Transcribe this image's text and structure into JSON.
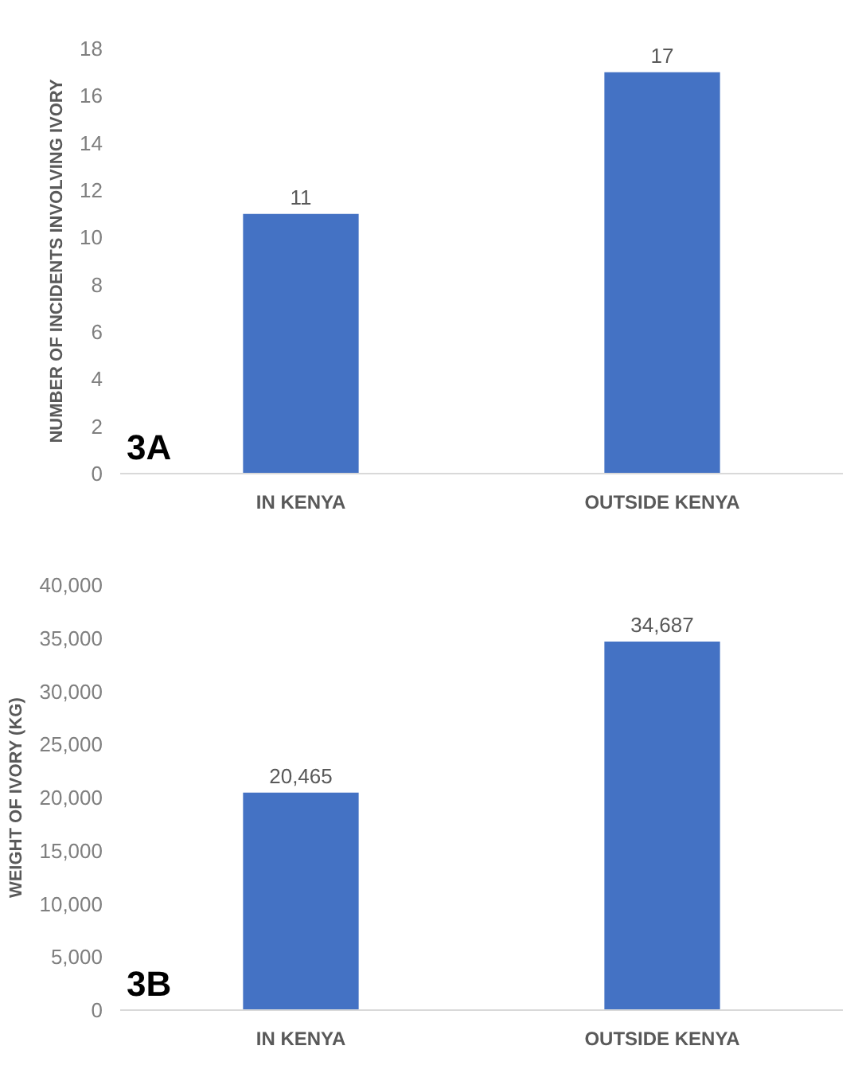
{
  "chart_data": [
    {
      "type": "bar",
      "ylabel": "NUMBER OF INCIDENTS INVOLVING IVORY",
      "categories": [
        "IN KENYA",
        "OUTSIDE KENYA"
      ],
      "values": [
        11,
        17
      ],
      "color": "#4472c4",
      "ylim": [
        0,
        18
      ],
      "yticks": [
        0,
        2,
        4,
        6,
        8,
        10,
        12,
        14,
        16,
        18
      ],
      "data_labels": true,
      "annotations": [
        "3A"
      ]
    },
    {
      "type": "bar",
      "ylabel": "WEIGHT OF IVORY (KG)",
      "categories": [
        "IN KENYA",
        "OUTSIDE KENYA"
      ],
      "values": [
        20465,
        34687
      ],
      "color": "#4472c4",
      "ylim": [
        0,
        40000
      ],
      "yticks": [
        0,
        {
          "value": 5000,
          "label": "5,000"
        },
        {
          "value": 10000,
          "label": "10,000"
        },
        {
          "value": 15000,
          "label": "15,000"
        },
        {
          "value": 20000,
          "label": "20,000"
        },
        {
          "value": 25000,
          "label": "25,000"
        },
        {
          "value": 30000,
          "label": "30,000"
        },
        {
          "value": 35000,
          "label": "35,000"
        },
        {
          "value": 40000,
          "label": "40,000"
        }
      ],
      "value_labels": [
        "20,465",
        "34,687"
      ],
      "annotations": [
        "3B"
      ]
    }
  ]
}
